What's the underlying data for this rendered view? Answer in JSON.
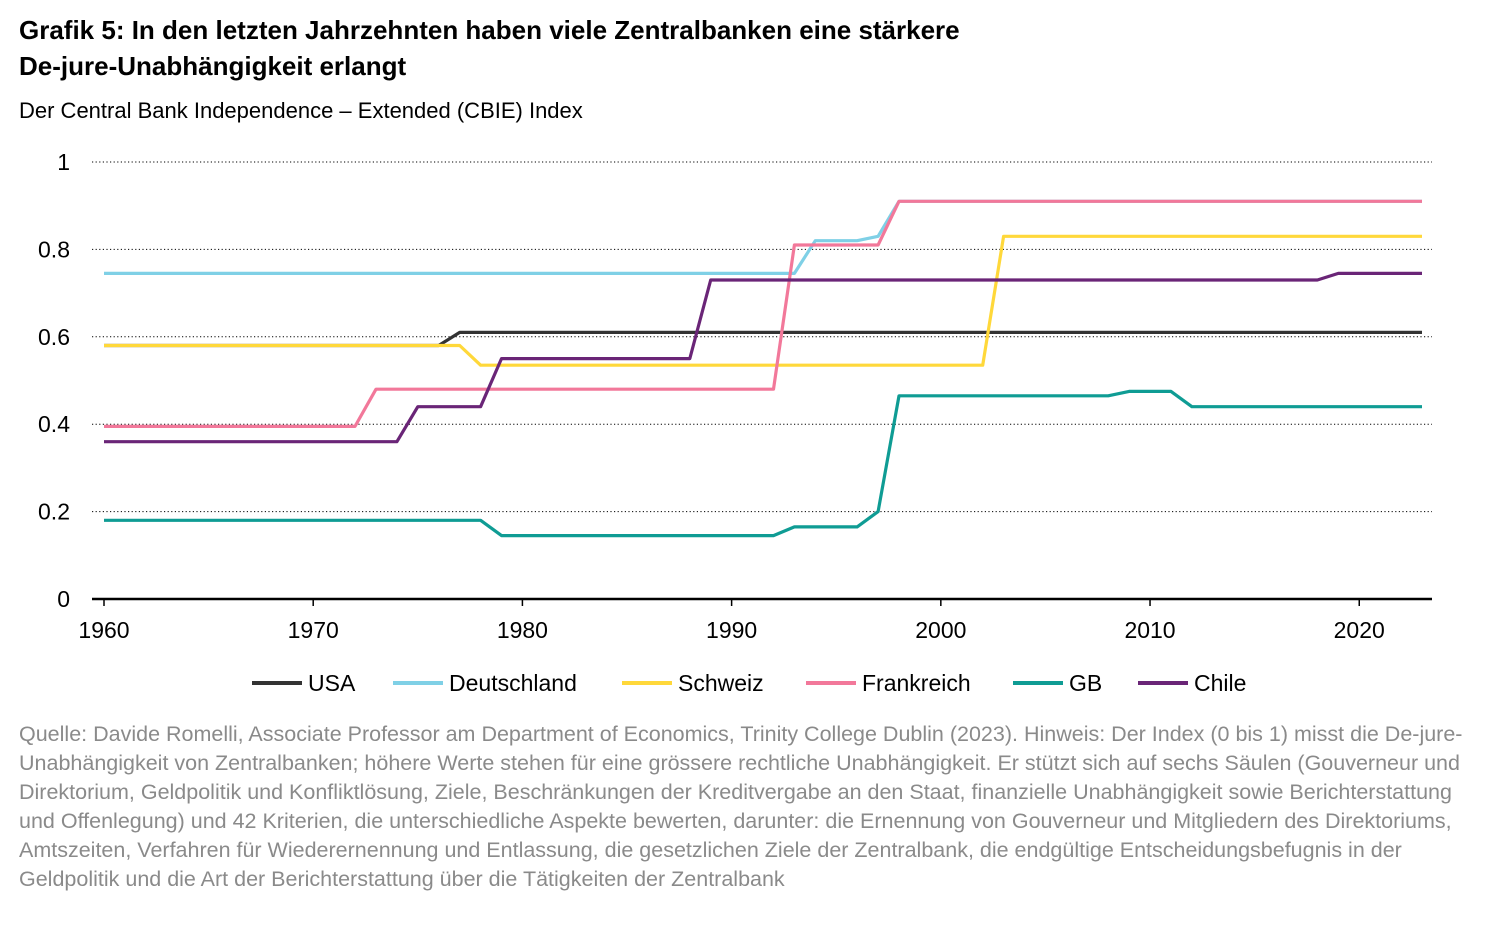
{
  "title_line1": "Grafik 5: In den letzten Jahrzehnten haben viele Zentralbanken eine stärkere",
  "title_line2": "De-jure-Unabhängigkeit erlangt",
  "subtitle": "Der Central Bank Independence – Extended (CBIE) Index",
  "source": "Quelle: Davide Romelli, Associate Professor am Department of Economics, Trinity College Dublin (2023). Hinweis: Der Index (0 bis 1) misst die De-jure-Unabhängigkeit von Zentralbanken; höhere Werte stehen für eine grössere rechtliche Unabhängigkeit. Er stützt sich auf sechs Säulen (Gouverneur und Direktorium, Geldpolitik und Konfliktlösung, Ziele, Beschränkungen der Kreditvergabe an den Staat, finanzielle Unabhängigkeit sowie Berichterstattung und Offenlegung) und 42 Kriterien, die unterschiedliche Aspekte bewerten, darunter: die Ernennung von Gouverneur und Mitgliedern des Direktoriums, Amtszeiten, Verfahren für Wiederernennung und Entlassung, die gesetzlichen Ziele der Zentralbank, die endgültige Entscheidungsbefugnis in der Geldpolitik und die Art der Berichterstattung über die Tätigkeiten der Zentralbank",
  "chart_data": {
    "type": "line",
    "xlim": [
      1960,
      2023
    ],
    "ylim": [
      0,
      1
    ],
    "x_ticks": [
      "1960",
      "1970",
      "1980",
      "1990",
      "2000",
      "2010",
      "2020"
    ],
    "x_tick_values": [
      1960,
      1970,
      1980,
      1990,
      2000,
      2010,
      2020
    ],
    "y_ticks": [
      "0",
      "0.2",
      "0.4",
      "0.6",
      "0.8",
      "1"
    ],
    "y_tick_values": [
      0,
      0.2,
      0.4,
      0.6,
      0.8,
      1
    ],
    "grid": "horizontal dotted",
    "legend_position": "bottom",
    "series": [
      {
        "name": "USA",
        "color": "#333333",
        "points": [
          [
            1960,
            0.58
          ],
          [
            1976,
            0.58
          ],
          [
            1977,
            0.61
          ],
          [
            2023,
            0.61
          ]
        ]
      },
      {
        "name": "Deutschland",
        "color": "#7fd0e6",
        "points": [
          [
            1960,
            0.745
          ],
          [
            1993,
            0.745
          ],
          [
            1994,
            0.82
          ],
          [
            1996,
            0.82
          ],
          [
            1997,
            0.83
          ],
          [
            1998,
            0.91
          ],
          [
            2023,
            0.91
          ]
        ]
      },
      {
        "name": "Schweiz",
        "color": "#ffd83a",
        "points": [
          [
            1960,
            0.58
          ],
          [
            1977,
            0.58
          ],
          [
            1978,
            0.535
          ],
          [
            2002,
            0.535
          ],
          [
            2003,
            0.83
          ],
          [
            2023,
            0.83
          ]
        ]
      },
      {
        "name": "Frankreich",
        "color": "#f2789a",
        "points": [
          [
            1960,
            0.395
          ],
          [
            1972,
            0.395
          ],
          [
            1973,
            0.48
          ],
          [
            1992,
            0.48
          ],
          [
            1993,
            0.81
          ],
          [
            1997,
            0.81
          ],
          [
            1998,
            0.91
          ],
          [
            2023,
            0.91
          ]
        ]
      },
      {
        "name": "GB",
        "color": "#0f9c94",
        "points": [
          [
            1960,
            0.18
          ],
          [
            1978,
            0.18
          ],
          [
            1979,
            0.145
          ],
          [
            1992,
            0.145
          ],
          [
            1993,
            0.165
          ],
          [
            1996,
            0.165
          ],
          [
            1997,
            0.2
          ],
          [
            1998,
            0.465
          ],
          [
            2008,
            0.465
          ],
          [
            2009,
            0.475
          ],
          [
            2011,
            0.475
          ],
          [
            2012,
            0.44
          ],
          [
            2023,
            0.44
          ]
        ]
      },
      {
        "name": "Chile",
        "color": "#6a2577",
        "points": [
          [
            1960,
            0.36
          ],
          [
            1974,
            0.36
          ],
          [
            1975,
            0.44
          ],
          [
            1978,
            0.44
          ],
          [
            1979,
            0.55
          ],
          [
            1988,
            0.55
          ],
          [
            1989,
            0.73
          ],
          [
            2018,
            0.73
          ],
          [
            2019,
            0.745
          ],
          [
            2023,
            0.745
          ]
        ]
      }
    ]
  }
}
